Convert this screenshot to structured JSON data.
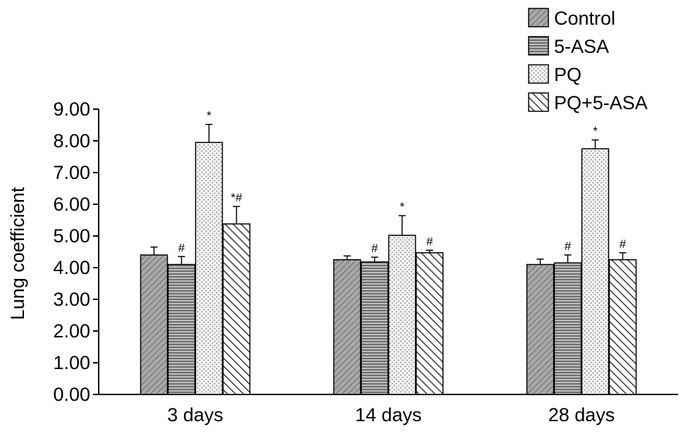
{
  "chart_data": {
    "type": "bar",
    "ylabel": "Lung coefficient",
    "xlabel": "",
    "ylim": [
      0,
      9
    ],
    "yticks": [
      "0.00",
      "1.00",
      "2.00",
      "3.00",
      "4.00",
      "5.00",
      "6.00",
      "7.00",
      "8.00",
      "9.00"
    ],
    "categories": [
      "3 days",
      "14 days",
      "28 days"
    ],
    "legend_position": "top-right",
    "grid": false,
    "series": [
      {
        "name": "Control",
        "values": [
          4.4,
          4.25,
          4.1
        ],
        "errors": [
          0.25,
          0.12,
          0.17
        ],
        "annotations": [
          "",
          "",
          ""
        ],
        "color": "#9a9a9a",
        "pattern": "diag-fine"
      },
      {
        "name": "5-ASA",
        "values": [
          4.1,
          4.18,
          4.15
        ],
        "errors": [
          0.25,
          0.15,
          0.25
        ],
        "annotations": [
          "#",
          "#",
          "#"
        ],
        "color": "#9a9a9a",
        "pattern": "horizontal"
      },
      {
        "name": "PQ",
        "values": [
          7.95,
          5.02,
          7.75
        ],
        "errors": [
          0.57,
          0.62,
          0.28
        ],
        "annotations": [
          "*",
          "*",
          "*"
        ],
        "color": "#ffffff",
        "pattern": "dotted"
      },
      {
        "name": "PQ+5-ASA",
        "values": [
          5.38,
          4.47,
          4.25
        ],
        "errors": [
          0.55,
          0.08,
          0.22
        ],
        "annotations": [
          "*#",
          "#",
          "#"
        ],
        "color": "#ffffff",
        "pattern": "diag-back"
      }
    ]
  }
}
